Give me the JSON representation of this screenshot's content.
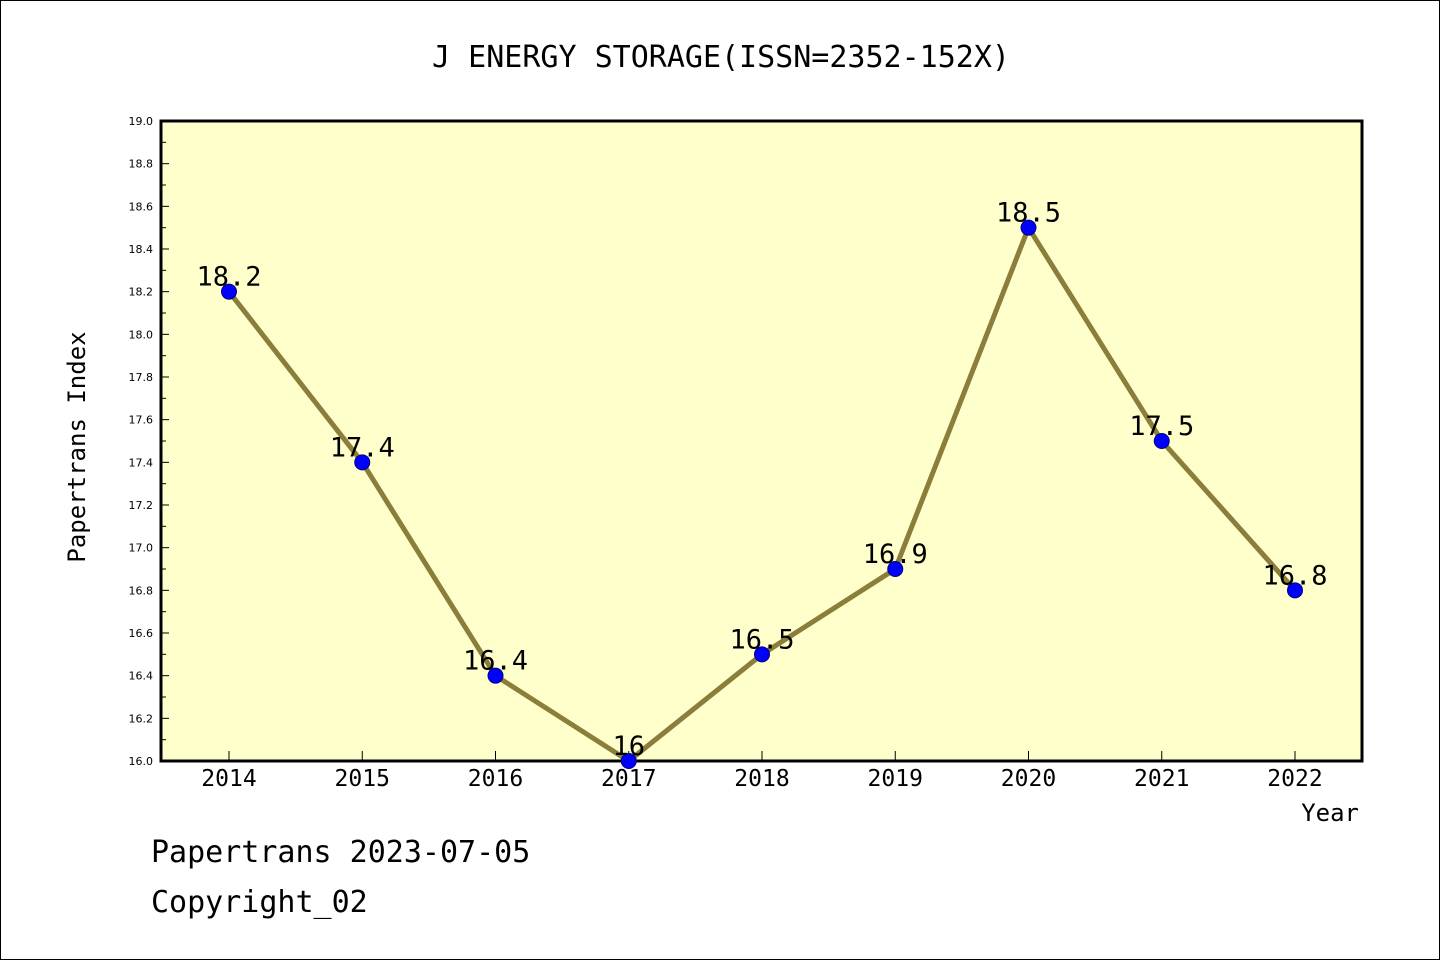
{
  "chart_data": {
    "type": "line",
    "title": "J ENERGY STORAGE(ISSN=2352-152X)",
    "xlabel": "Year",
    "ylabel": "Papertrans Index",
    "categories": [
      "2014",
      "2015",
      "2016",
      "2017",
      "2018",
      "2019",
      "2020",
      "2021",
      "2022"
    ],
    "series": [
      {
        "values": [
          18.2,
          17.4,
          16.4,
          16.0,
          16.5,
          16.9,
          18.5,
          17.5,
          16.8
        ],
        "labels": [
          "18.2",
          "17.4",
          "16.4",
          "16",
          "16.5",
          "16.9",
          "18.5",
          "17.5",
          "16.8"
        ]
      }
    ],
    "ylim": [
      16.0,
      19.0
    ],
    "yticks": [
      "16.0",
      "16.2",
      "16.4",
      "16.6",
      "16.8",
      "17.0",
      "17.2",
      "17.4",
      "17.6",
      "17.8",
      "18.0",
      "18.2",
      "18.4",
      "18.6",
      "18.8",
      "19.0"
    ],
    "grid": false,
    "colors": {
      "plot_background": "#ffffcc",
      "line": "#8b7d3a",
      "marker": "#0000ff",
      "marker_edge": "#000080"
    }
  },
  "footer": {
    "line1": "Papertrans 2023-07-05",
    "line2": "Copyright_02"
  }
}
